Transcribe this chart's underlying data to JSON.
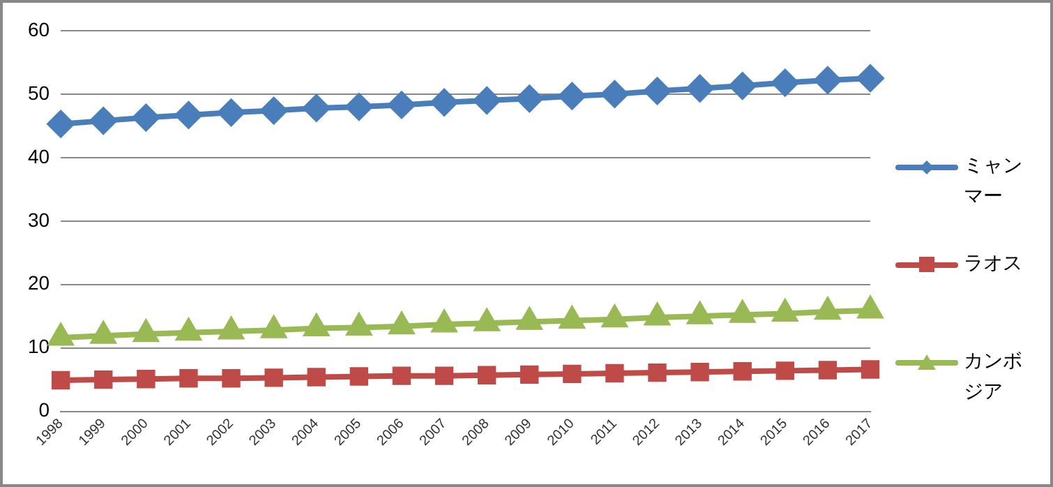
{
  "chart_data": {
    "type": "line",
    "categories": [
      "1998",
      "1999",
      "2000",
      "2001",
      "2002",
      "2003",
      "2004",
      "2005",
      "2006",
      "2007",
      "2008",
      "2009",
      "2010",
      "2011",
      "2012",
      "2013",
      "2014",
      "2015",
      "2016",
      "2017"
    ],
    "series": [
      {
        "name": "ミャンマー",
        "color": "#4a7ebb",
        "marker": "diamond",
        "values": [
          45.3,
          45.8,
          46.3,
          46.7,
          47.1,
          47.4,
          47.8,
          48.0,
          48.3,
          48.7,
          49.0,
          49.3,
          49.7,
          50.0,
          50.5,
          50.9,
          51.3,
          51.8,
          52.2,
          52.5
        ]
      },
      {
        "name": "ラオス",
        "color": "#be4b48",
        "marker": "square",
        "values": [
          4.9,
          5.0,
          5.1,
          5.2,
          5.2,
          5.3,
          5.4,
          5.5,
          5.6,
          5.6,
          5.7,
          5.8,
          5.9,
          6.0,
          6.1,
          6.2,
          6.3,
          6.4,
          6.5,
          6.6
        ]
      },
      {
        "name": "カンボジア",
        "color": "#98b954",
        "marker": "triangle",
        "values": [
          11.6,
          11.9,
          12.2,
          12.4,
          12.6,
          12.8,
          13.1,
          13.2,
          13.4,
          13.7,
          13.9,
          14.1,
          14.3,
          14.5,
          14.8,
          15.0,
          15.2,
          15.4,
          15.7,
          15.9
        ]
      }
    ],
    "ylim": [
      0,
      60
    ],
    "yticks": [
      0,
      10,
      20,
      30,
      40,
      50,
      60
    ],
    "grid": "y",
    "legend": "right",
    "line_style": "solid"
  }
}
